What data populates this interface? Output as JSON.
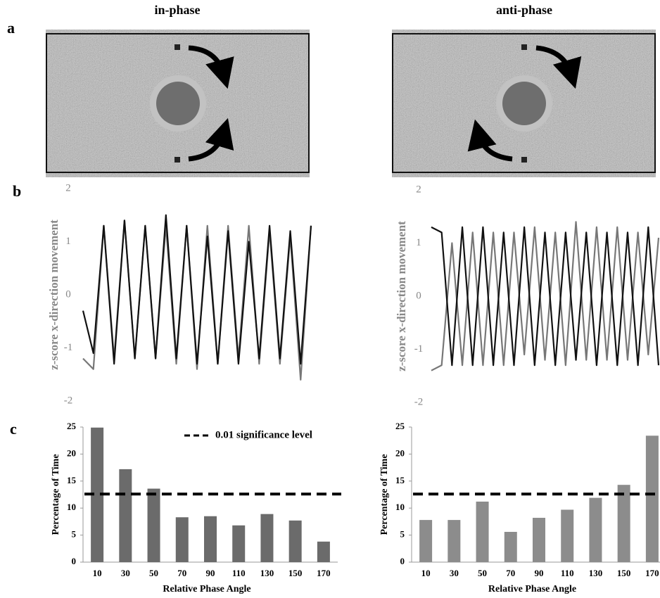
{
  "headers": [
    "in-phase",
    "anti-phase"
  ],
  "panel_labels": [
    "a",
    "b",
    "c"
  ],
  "chart_data": [
    {
      "type": "line",
      "ylabel": "z-score x-direction movement",
      "ylim": [
        -2,
        2
      ],
      "yticks": [
        -2,
        -1,
        0,
        1,
        2
      ],
      "series": [
        {
          "color": "#777777",
          "values": [
            -1.2,
            -1.4,
            1.3,
            -1.2,
            1.4,
            -1.2,
            1.3,
            -1.2,
            1.3,
            -1.3,
            1.3,
            -1.4,
            1.3,
            -1.3,
            1.3,
            -1.2,
            1.3,
            -1.3,
            1.2,
            -1.3,
            1.1,
            -1.6,
            1.3
          ]
        },
        {
          "color": "#111111",
          "values": [
            -0.3,
            -1.1,
            1.3,
            -1.3,
            1.4,
            -1.2,
            1.3,
            -1.2,
            1.5,
            -1.2,
            1.3,
            -1.3,
            1.1,
            -1.3,
            1.2,
            -1.3,
            1.0,
            -1.2,
            1.3,
            -1.2,
            1.2,
            -1.3,
            1.3
          ]
        }
      ]
    },
    {
      "type": "line",
      "ylabel": "z-score x-direction movement",
      "ylim": [
        -2,
        2
      ],
      "yticks": [
        -2,
        -1,
        0,
        1,
        2
      ],
      "series": [
        {
          "color": "#777777",
          "values": [
            -1.4,
            -1.3,
            1.0,
            -1.3,
            1.2,
            -1.3,
            1.2,
            -1.3,
            1.2,
            -1.1,
            1.3,
            -1.2,
            1.2,
            -1.3,
            1.4,
            -1.2,
            1.3,
            -1.2,
            1.3,
            -1.2,
            1.2,
            -1.1,
            1.1
          ]
        },
        {
          "color": "#111111",
          "values": [
            1.3,
            1.2,
            -1.3,
            1.3,
            -1.3,
            1.3,
            -1.3,
            1.2,
            -1.3,
            1.3,
            -1.3,
            1.2,
            -1.3,
            1.2,
            -1.2,
            1.2,
            -1.3,
            1.2,
            -1.3,
            1.2,
            -1.3,
            1.3,
            -1.3
          ]
        }
      ]
    },
    {
      "type": "bar",
      "ylabel": "Percentage of Time",
      "xlabel": "Relative Phase Angle",
      "ylim": [
        0,
        25
      ],
      "yticks": [
        0,
        5,
        10,
        15,
        20,
        25
      ],
      "categories": [
        "10",
        "30",
        "50",
        "70",
        "90",
        "110",
        "130",
        "150",
        "170"
      ],
      "values": [
        24.9,
        17.2,
        13.6,
        8.3,
        8.5,
        6.8,
        8.9,
        7.7,
        3.8
      ],
      "color": "#6b6b6b",
      "threshold": 12.6,
      "threshold_label": "0.01 significance level"
    },
    {
      "type": "bar",
      "ylabel": "Percentage of Time",
      "xlabel": "Relative Phase Angle",
      "ylim": [
        0,
        25
      ],
      "yticks": [
        0,
        5,
        10,
        15,
        20,
        25
      ],
      "categories": [
        "10",
        "30",
        "50",
        "70",
        "90",
        "110",
        "130",
        "150",
        "170"
      ],
      "values": [
        7.8,
        7.8,
        11.2,
        5.6,
        8.2,
        9.7,
        11.9,
        14.3,
        23.4
      ],
      "color": "#8c8c8c",
      "threshold": 12.6
    }
  ]
}
